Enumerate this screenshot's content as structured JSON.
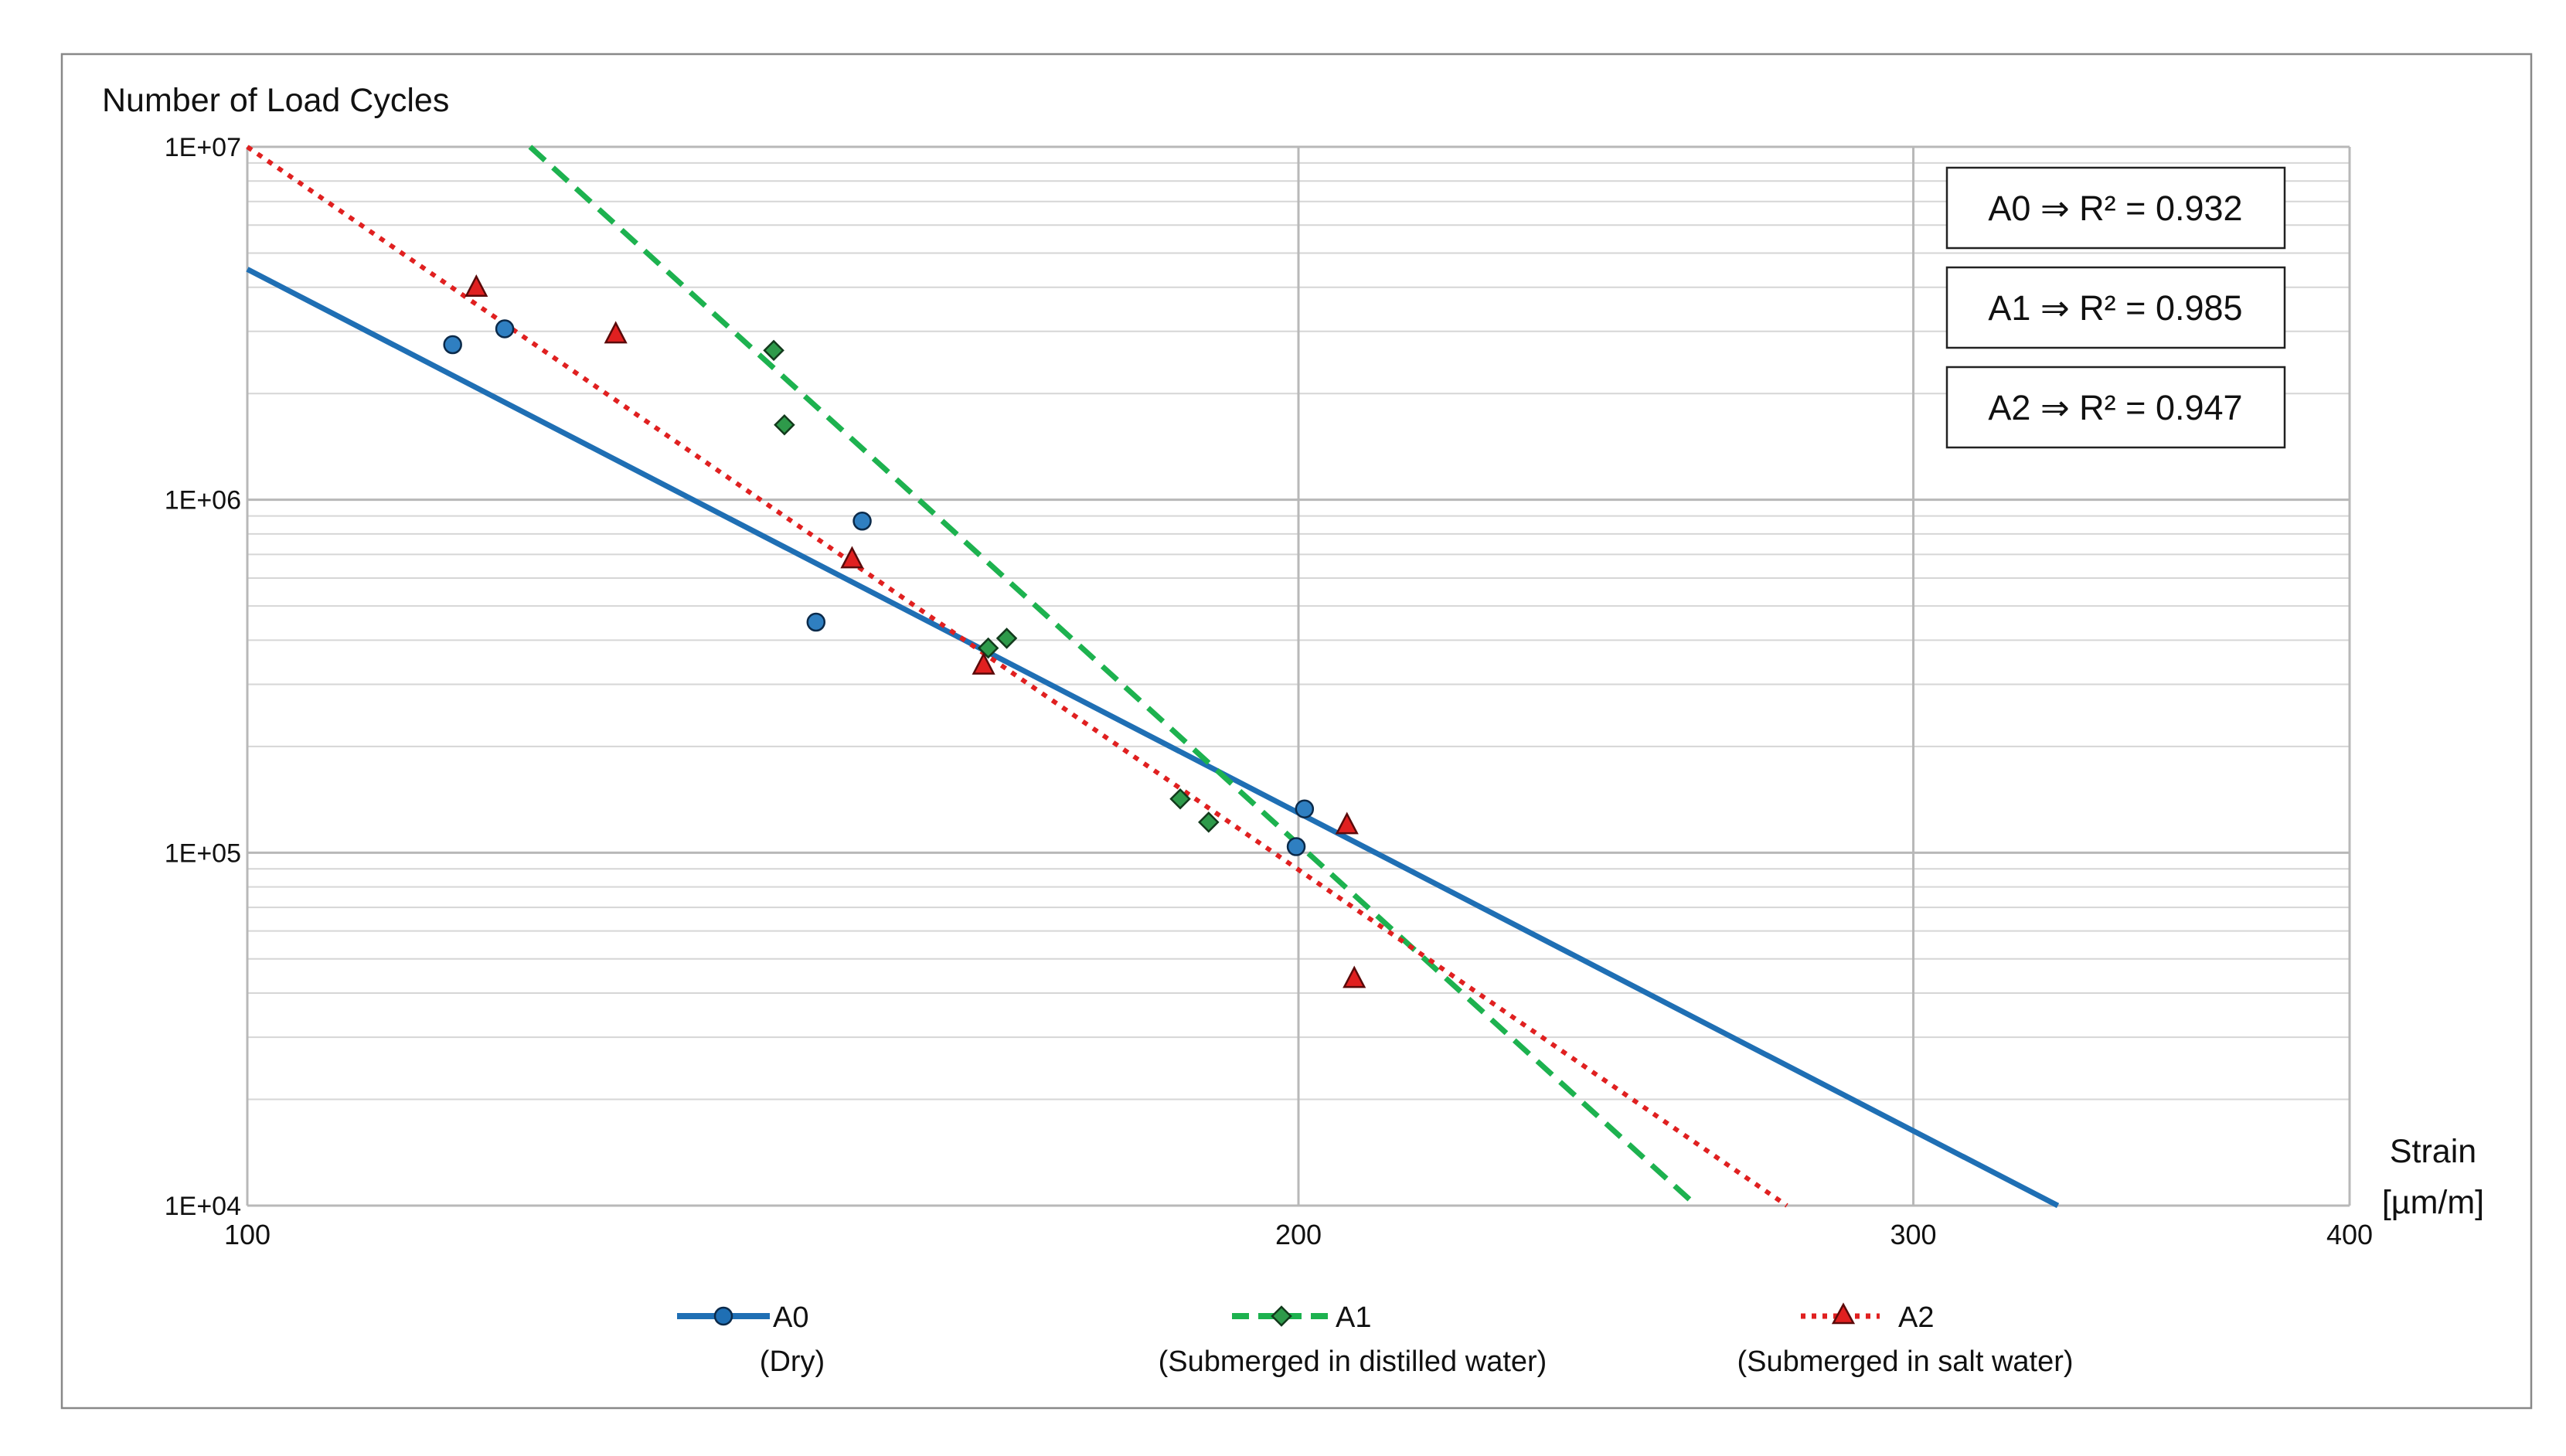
{
  "chart_data": {
    "type": "scatter",
    "y_scale": "log",
    "x_scale": "log",
    "ylabel": "Number of Load Cycles",
    "xlabel": [
      "Strain",
      "[µm/m]"
    ],
    "xlim": [
      100,
      400
    ],
    "ylim": [
      10000,
      10000000
    ],
    "x_ticks": [
      100,
      200,
      300,
      400
    ],
    "x_tick_labels": [
      "100",
      "200",
      "300",
      "400"
    ],
    "y_ticks": [
      10000,
      100000,
      1000000,
      10000000
    ],
    "y_tick_labels": [
      "1E+04",
      "1E+05",
      "1E+06",
      "1E+07"
    ],
    "grid": true,
    "legend_position": "bottom",
    "series": [
      {
        "name": "A0",
        "description": "(Dry)",
        "color": "#1f6fb4",
        "marker": "circle",
        "line_style": "solid",
        "points": [
          [
            114.5,
            2750000
          ],
          [
            118.5,
            3050000
          ],
          [
            145.5,
            450000
          ],
          [
            150,
            870000
          ],
          [
            199.7,
            104000
          ],
          [
            200.8,
            133000
          ]
        ],
        "fit": [
          [
            100,
            4500000
          ],
          [
            330,
            10000
          ]
        ]
      },
      {
        "name": "A1",
        "description": "(Submerged in distilled water)",
        "color": "#1db24f",
        "marker": "diamond",
        "line_style": "dashed",
        "points": [
          [
            141.5,
            2650000
          ],
          [
            142.5,
            1630000
          ],
          [
            163,
            380000
          ],
          [
            165,
            405000
          ],
          [
            185,
            142000
          ],
          [
            188.5,
            122000
          ]
        ],
        "fit": [
          [
            120.5,
            10000000
          ],
          [
            260,
            10000
          ]
        ]
      },
      {
        "name": "A2",
        "description": "(Submerged in salt water)",
        "color": "#e02020",
        "marker": "triangle",
        "line_style": "dotted",
        "points": [
          [
            116.3,
            4000000
          ],
          [
            127.5,
            2950000
          ],
          [
            149,
            680000
          ],
          [
            162.5,
            340000
          ],
          [
            206.5,
            120000
          ],
          [
            207.5,
            44000
          ]
        ],
        "fit": [
          [
            100,
            10000000
          ],
          [
            276,
            10000
          ]
        ]
      }
    ],
    "annotations": [
      "A0 ⇒ R² = 0.932",
      "A1 ⇒ R² = 0.985",
      "A2 ⇒ R² = 0.947"
    ]
  }
}
